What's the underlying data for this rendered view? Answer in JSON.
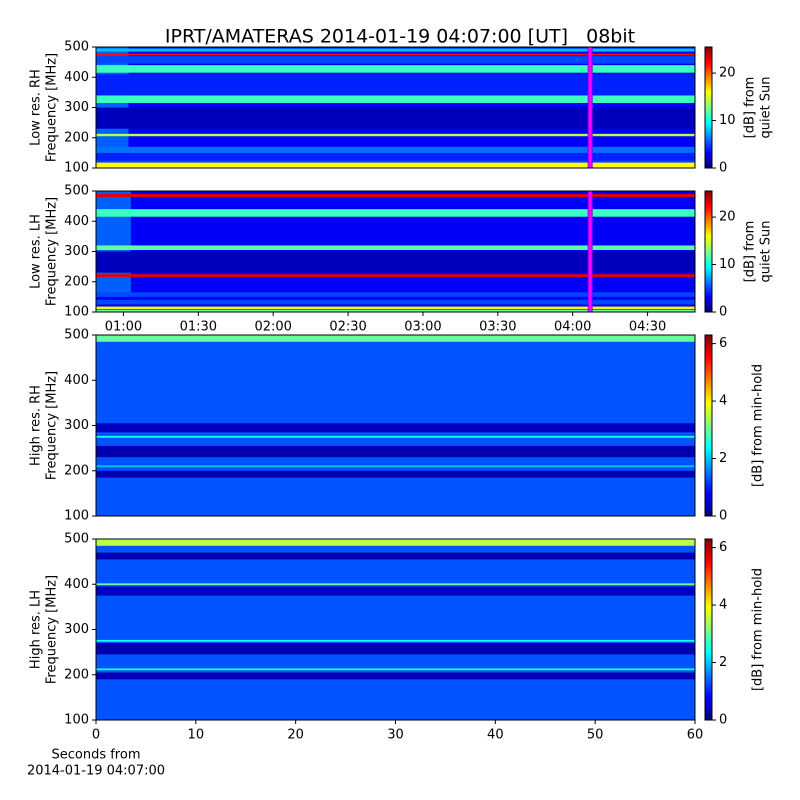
{
  "title": "IPRT/AMATERAS 2014-01-19 04:07:00 [UT]   08bit",
  "chart_data": [
    {
      "type": "heatmap",
      "ylabel": [
        "Low res. RH",
        "Frequency [MHz]"
      ],
      "ylim": [
        100,
        500
      ],
      "yticks": [
        100,
        200,
        300,
        400,
        500
      ],
      "xlim": [
        49,
        289
      ],
      "colormap": "jet",
      "clim": [
        0,
        25.5
      ],
      "cticks": [
        0,
        10,
        20
      ],
      "clabel": [
        "[dB] from",
        "quiet Sun"
      ],
      "background": 3,
      "bands": [
        {
          "from": 100,
          "to": 118,
          "value": 16
        },
        {
          "from": 118,
          "to": 125,
          "value": 5
        },
        {
          "from": 125,
          "to": 150,
          "value": 4
        },
        {
          "from": 150,
          "to": 170,
          "value": 6
        },
        {
          "from": 205,
          "to": 213,
          "value": 14
        },
        {
          "from": 230,
          "to": 300,
          "value": 1.5
        },
        {
          "from": 315,
          "to": 340,
          "value": 11
        },
        {
          "from": 340,
          "to": 410,
          "value": 4
        },
        {
          "from": 415,
          "to": 440,
          "value": 11
        },
        {
          "from": 445,
          "to": 470,
          "value": 5
        },
        {
          "from": 472,
          "to": 478,
          "value": 22
        },
        {
          "from": 485,
          "to": 495,
          "value": 8
        }
      ],
      "patches": [
        {
          "x0": 49,
          "x1": 62,
          "y0": 130,
          "y1": 500,
          "value": 6
        }
      ],
      "markers": [
        247
      ],
      "marker_color": "#ff00ff"
    },
    {
      "type": "heatmap",
      "ylabel": [
        "Low res. LH",
        "Frequency [MHz]"
      ],
      "ylim": [
        100,
        500
      ],
      "yticks": [
        100,
        200,
        300,
        400,
        500
      ],
      "xlim": [
        49,
        289
      ],
      "xticks": [
        {
          "value": 60,
          "label": "01:00"
        },
        {
          "value": 90,
          "label": "01:30"
        },
        {
          "value": 120,
          "label": "02:00"
        },
        {
          "value": 150,
          "label": "02:30"
        },
        {
          "value": 180,
          "label": "03:00"
        },
        {
          "value": 210,
          "label": "03:30"
        },
        {
          "value": 240,
          "label": "04:00"
        },
        {
          "value": 270,
          "label": "04:30"
        }
      ],
      "colormap": "jet",
      "clim": [
        0,
        25.5
      ],
      "cticks": [
        0,
        10,
        20
      ],
      "clabel": [
        "[dB] from",
        "quiet Sun"
      ],
      "background": 3,
      "bands": [
        {
          "from": 100,
          "to": 108,
          "value": 12
        },
        {
          "from": 110,
          "to": 118,
          "value": 16
        },
        {
          "from": 125,
          "to": 140,
          "value": 5
        },
        {
          "from": 150,
          "to": 165,
          "value": 5
        },
        {
          "from": 215,
          "to": 225,
          "value": 23
        },
        {
          "from": 230,
          "to": 300,
          "value": 1.5
        },
        {
          "from": 305,
          "to": 320,
          "value": 12
        },
        {
          "from": 415,
          "to": 440,
          "value": 11
        },
        {
          "from": 480,
          "to": 490,
          "value": 23
        }
      ],
      "patches": [
        {
          "x0": 49,
          "x1": 63,
          "y0": 150,
          "y1": 500,
          "value": 6
        }
      ],
      "markers": [
        247
      ],
      "marker_color": "#ff00ff"
    },
    {
      "type": "heatmap",
      "ylabel": [
        "High res. RH",
        "Frequency [MHz]"
      ],
      "ylim": [
        100,
        500
      ],
      "yticks": [
        100,
        200,
        300,
        400,
        500
      ],
      "xlim": [
        0,
        60
      ],
      "colormap": "jet",
      "clim": [
        0,
        6.3
      ],
      "cticks": [
        0,
        2,
        4,
        6
      ],
      "clabel": [
        "[dB] from min-hold"
      ],
      "background": 1.3,
      "bands": [
        {
          "from": 185,
          "to": 200,
          "value": 0.3
        },
        {
          "from": 208,
          "to": 212,
          "value": 2
        },
        {
          "from": 230,
          "to": 255,
          "value": 0.3
        },
        {
          "from": 273,
          "to": 277,
          "value": 2.5
        },
        {
          "from": 285,
          "to": 305,
          "value": 0.4
        },
        {
          "from": 485,
          "to": 500,
          "value": 3
        }
      ]
    },
    {
      "type": "heatmap",
      "ylabel": [
        "High res. LH",
        "Frequency [MHz]"
      ],
      "ylim": [
        100,
        500
      ],
      "yticks": [
        100,
        200,
        300,
        400,
        500
      ],
      "xlim": [
        0,
        60
      ],
      "xticks": [
        0,
        10,
        20,
        30,
        40,
        50,
        60
      ],
      "xlabel": [
        "Seconds from",
        "2014-01-19 04:07:00"
      ],
      "colormap": "jet",
      "clim": [
        0,
        6.3
      ],
      "cticks": [
        0,
        2,
        4,
        6
      ],
      "clabel": [
        "[dB] from min-hold"
      ],
      "background": 1.3,
      "bands": [
        {
          "from": 190,
          "to": 205,
          "value": 0.3
        },
        {
          "from": 210,
          "to": 214,
          "value": 2.5
        },
        {
          "from": 245,
          "to": 270,
          "value": 0.3
        },
        {
          "from": 273,
          "to": 277,
          "value": 2.5
        },
        {
          "from": 375,
          "to": 395,
          "value": 0.4
        },
        {
          "from": 398,
          "to": 402,
          "value": 3
        },
        {
          "from": 455,
          "to": 470,
          "value": 0.3
        },
        {
          "from": 485,
          "to": 500,
          "value": 3.5
        }
      ]
    }
  ]
}
